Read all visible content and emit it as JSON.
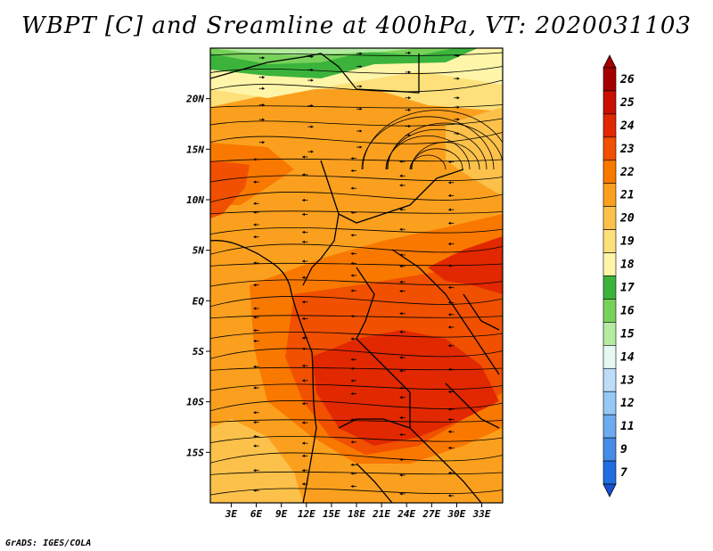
{
  "title": "WBPT [C] and Sreamline at 400hPa, VT: 2020031103",
  "footer": "GrADS: IGES/COLA",
  "map": {
    "lat_ticks": [
      {
        "value": 20,
        "label": "20N"
      },
      {
        "value": 15,
        "label": "15N"
      },
      {
        "value": 10,
        "label": "10N"
      },
      {
        "value": 5,
        "label": "5N"
      },
      {
        "value": 0,
        "label": "EQ"
      },
      {
        "value": -5,
        "label": "5S"
      },
      {
        "value": -10,
        "label": "10S"
      },
      {
        "value": -15,
        "label": "15S"
      }
    ],
    "lon_ticks": [
      {
        "value": 3,
        "label": "3E"
      },
      {
        "value": 6,
        "label": "6E"
      },
      {
        "value": 9,
        "label": "9E"
      },
      {
        "value": 12,
        "label": "12E"
      },
      {
        "value": 15,
        "label": "15E"
      },
      {
        "value": 18,
        "label": "18E"
      },
      {
        "value": 21,
        "label": "21E"
      },
      {
        "value": 24,
        "label": "24E"
      },
      {
        "value": 27,
        "label": "27E"
      },
      {
        "value": 30,
        "label": "30E"
      },
      {
        "value": 33,
        "label": "33E"
      }
    ],
    "lon_range": [
      0.5,
      35.5
    ],
    "lat_range": [
      -20,
      25
    ]
  },
  "colorbar": {
    "levels": [
      {
        "label": "26",
        "color": "#a50000"
      },
      {
        "label": "25",
        "color": "#c80f00"
      },
      {
        "label": "24",
        "color": "#e12800"
      },
      {
        "label": "23",
        "color": "#f05000"
      },
      {
        "label": "22",
        "color": "#f87800"
      },
      {
        "label": "21",
        "color": "#fba01e"
      },
      {
        "label": "20",
        "color": "#fcc14a"
      },
      {
        "label": "19",
        "color": "#fde07a"
      },
      {
        "label": "18",
        "color": "#fff5a8"
      },
      {
        "label": "17",
        "color": "#3cb43c"
      },
      {
        "label": "16",
        "color": "#78d25a"
      },
      {
        "label": "15",
        "color": "#b4eba0"
      },
      {
        "label": "14",
        "color": "#e6f8f0"
      },
      {
        "label": "13",
        "color": "#bcdcf8"
      },
      {
        "label": "12",
        "color": "#96c8f5"
      },
      {
        "label": "11",
        "color": "#6eaaf0"
      },
      {
        "label": "9",
        "color": "#468ce6"
      },
      {
        "label": "7",
        "color": "#1e6ee1"
      }
    ],
    "bottom_color": "#1450d2"
  }
}
